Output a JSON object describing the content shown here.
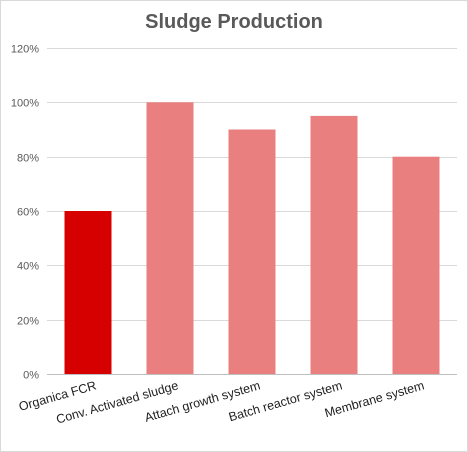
{
  "chart_data": {
    "type": "bar",
    "title": "Sludge Production",
    "xlabel": "",
    "ylabel": "",
    "categories": [
      "Organica FCR",
      "Conv. Activated sludge",
      "Attach growth system",
      "Batch reactor system",
      "Membrane system"
    ],
    "values": [
      60,
      100,
      90,
      95,
      80
    ],
    "unit": "%",
    "ylim": [
      0,
      120
    ],
    "yticks": [
      0,
      20,
      40,
      60,
      80,
      100,
      120
    ],
    "ytick_labels": [
      "0%",
      "20%",
      "40%",
      "60%",
      "80%",
      "100%",
      "120%"
    ],
    "grid": true,
    "legend": "none",
    "bar_colors": [
      "#d60000",
      "#ea7f7f",
      "#ea7f7f",
      "#ea7f7f",
      "#ea7f7f"
    ],
    "gridline_color": "#d9d9d9",
    "axis_color": "#bfbfbf"
  }
}
